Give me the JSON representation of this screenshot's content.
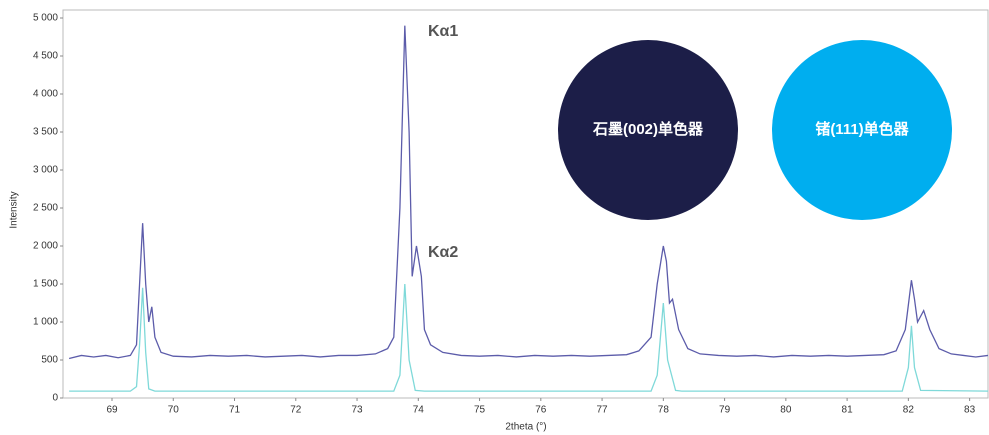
{
  "chart_data": {
    "type": "line",
    "x_label": "2theta (°)",
    "y_label": "Intensity",
    "xlim": [
      68.2,
      83.3
    ],
    "xticks": [
      69,
      70,
      71,
      72,
      73,
      74,
      75,
      76,
      77,
      78,
      79,
      80,
      81,
      82,
      83
    ],
    "ylim": [
      0,
      5000
    ],
    "yticks": [
      0,
      500,
      {
        "value": 1000,
        "label": "1 000"
      },
      {
        "value": 1500,
        "label": "1 500"
      },
      {
        "value": 2000,
        "label": "2 000"
      },
      {
        "value": 2500,
        "label": "2 500"
      },
      {
        "value": 3000,
        "label": "3 000"
      },
      {
        "value": 3500,
        "label": "3 500"
      },
      {
        "value": 4000,
        "label": "4 000"
      },
      {
        "value": 4500,
        "label": "4 500"
      },
      {
        "value": 5000,
        "label": "5 000"
      }
    ],
    "annotations": [
      "Kα1",
      "Kα2"
    ],
    "series": [
      {
        "name": "石墨(002)单色器",
        "color": "#5c5caa",
        "legend_color": "#1c1e48",
        "x": [
          68.3,
          68.5,
          68.7,
          68.9,
          69.1,
          69.3,
          69.4,
          69.45,
          69.5,
          69.55,
          69.6,
          69.65,
          69.7,
          69.8,
          70.0,
          70.3,
          70.6,
          70.9,
          71.2,
          71.5,
          71.8,
          72.1,
          72.4,
          72.7,
          73.0,
          73.3,
          73.5,
          73.6,
          73.7,
          73.78,
          73.85,
          73.9,
          73.97,
          74.05,
          74.1,
          74.2,
          74.4,
          74.7,
          75.0,
          75.3,
          75.6,
          75.9,
          76.2,
          76.5,
          76.8,
          77.1,
          77.4,
          77.6,
          77.8,
          77.9,
          78.0,
          78.05,
          78.1,
          78.15,
          78.25,
          78.4,
          78.6,
          78.9,
          79.2,
          79.5,
          79.8,
          80.1,
          80.4,
          80.7,
          81.0,
          81.3,
          81.6,
          81.8,
          81.95,
          82.05,
          82.1,
          82.15,
          82.25,
          82.35,
          82.5,
          82.7,
          82.9,
          83.1,
          83.3
        ],
        "values": [
          520,
          560,
          540,
          560,
          530,
          560,
          700,
          1500,
          2300,
          1500,
          1000,
          1200,
          800,
          600,
          550,
          540,
          560,
          550,
          560,
          540,
          550,
          560,
          540,
          560,
          560,
          580,
          650,
          800,
          2500,
          4900,
          3500,
          1600,
          2000,
          1600,
          900,
          700,
          600,
          560,
          550,
          560,
          540,
          560,
          550,
          560,
          550,
          560,
          570,
          620,
          800,
          1500,
          2000,
          1800,
          1250,
          1300,
          900,
          650,
          580,
          560,
          550,
          560,
          540,
          560,
          550,
          560,
          550,
          560,
          570,
          620,
          900,
          1550,
          1300,
          1000,
          1150,
          900,
          650,
          580,
          560,
          540,
          560
        ]
      },
      {
        "name": "锗(111)单色器",
        "color": "#7fd9d9",
        "legend_color": "#00aeef",
        "x": [
          68.3,
          69.3,
          69.4,
          69.45,
          69.5,
          69.55,
          69.6,
          69.7,
          73.6,
          73.7,
          73.78,
          73.85,
          73.95,
          74.1,
          77.8,
          77.9,
          78.0,
          78.07,
          78.2,
          78.3,
          81.9,
          82.0,
          82.05,
          82.1,
          82.2,
          83.3
        ],
        "values": [
          90,
          90,
          150,
          700,
          1450,
          600,
          120,
          90,
          90,
          300,
          1500,
          500,
          100,
          90,
          90,
          300,
          1250,
          500,
          100,
          90,
          90,
          400,
          950,
          400,
          100,
          90
        ]
      }
    ]
  }
}
